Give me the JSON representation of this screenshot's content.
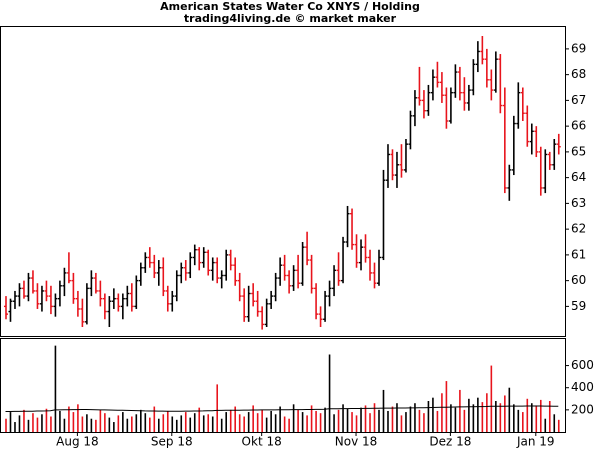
{
  "chart_data": {
    "type": "ohlc",
    "title": "American States Water Co XNYS / Holding",
    "subtitle": "trading4living.de © market maker",
    "up_color": "#000000",
    "down_color": "#e8141c",
    "avg_color": "#000000",
    "xlim": [
      -1,
      124.5
    ],
    "xticks": [
      {
        "value": 16,
        "label": "Aug 18"
      },
      {
        "value": 37,
        "label": "Sep 18"
      },
      {
        "value": 57,
        "label": "Okt 18"
      },
      {
        "value": 78,
        "label": "Nov 18"
      },
      {
        "value": 99,
        "label": "Dez 18"
      },
      {
        "value": 118,
        "label": "Jan 19"
      }
    ],
    "ylim": [
      57.85,
      69.85
    ],
    "yticks": [
      59,
      60,
      61,
      62,
      63,
      64,
      65,
      66,
      67,
      68,
      69
    ],
    "y2lim": [
      0,
      840
    ],
    "y2ticks": [
      200,
      400,
      600
    ],
    "bars": [
      [
        59.0,
        59.4,
        58.5,
        58.7
      ],
      [
        58.8,
        59.3,
        58.4,
        59.2
      ],
      [
        59.2,
        59.6,
        58.9,
        59.4
      ],
      [
        59.4,
        59.9,
        59.0,
        59.7
      ],
      [
        59.7,
        60.0,
        59.3,
        59.4
      ],
      [
        59.4,
        60.3,
        59.2,
        60.1
      ],
      [
        60.1,
        60.4,
        59.5,
        59.6
      ],
      [
        59.6,
        59.9,
        58.9,
        59.1
      ],
      [
        59.1,
        59.8,
        58.8,
        59.6
      ],
      [
        59.6,
        60.0,
        59.2,
        59.4
      ],
      [
        59.4,
        59.8,
        58.7,
        59.0
      ],
      [
        59.0,
        59.5,
        58.6,
        59.3
      ],
      [
        59.3,
        60.0,
        59.0,
        59.8
      ],
      [
        59.8,
        60.5,
        59.4,
        60.3
      ],
      [
        60.3,
        61.1,
        59.9,
        60.0
      ],
      [
        60.0,
        60.3,
        59.1,
        59.3
      ],
      [
        59.3,
        59.6,
        58.6,
        58.9
      ],
      [
        58.9,
        59.3,
        58.2,
        58.4
      ],
      [
        58.4,
        59.9,
        58.3,
        59.7
      ],
      [
        59.7,
        60.4,
        59.4,
        60.1
      ],
      [
        60.1,
        60.3,
        59.5,
        59.6
      ],
      [
        59.6,
        60.0,
        59.0,
        59.3
      ],
      [
        59.3,
        59.5,
        58.5,
        58.8
      ],
      [
        58.8,
        59.4,
        58.2,
        59.2
      ],
      [
        59.2,
        59.7,
        58.9,
        59.3
      ],
      [
        59.3,
        59.5,
        58.8,
        59.0
      ],
      [
        59.0,
        59.5,
        58.5,
        59.3
      ],
      [
        59.3,
        59.8,
        59.0,
        59.5
      ],
      [
        59.5,
        59.9,
        58.8,
        59.0
      ],
      [
        59.0,
        60.2,
        58.9,
        60.0
      ],
      [
        60.0,
        60.7,
        59.8,
        60.5
      ],
      [
        60.5,
        61.1,
        60.3,
        60.9
      ],
      [
        60.9,
        61.3,
        60.5,
        60.7
      ],
      [
        60.7,
        61.0,
        60.1,
        60.3
      ],
      [
        60.3,
        60.8,
        59.8,
        60.5
      ],
      [
        60.5,
        60.9,
        59.4,
        59.6
      ],
      [
        59.6,
        59.8,
        58.8,
        59.1
      ],
      [
        59.1,
        59.6,
        58.8,
        59.4
      ],
      [
        59.4,
        60.4,
        59.2,
        60.2
      ],
      [
        60.2,
        60.7,
        59.9,
        60.5
      ],
      [
        60.5,
        60.8,
        60.0,
        60.3
      ],
      [
        60.3,
        61.1,
        60.1,
        60.9
      ],
      [
        60.9,
        61.4,
        60.6,
        61.2
      ],
      [
        61.2,
        61.3,
        60.4,
        60.7
      ],
      [
        60.7,
        61.3,
        60.5,
        61.1
      ],
      [
        61.1,
        61.2,
        60.2,
        60.4
      ],
      [
        60.4,
        60.9,
        60.0,
        60.7
      ],
      [
        60.7,
        60.9,
        59.9,
        60.1
      ],
      [
        60.1,
        60.4,
        59.7,
        60.2
      ],
      [
        60.2,
        61.2,
        60.0,
        61.0
      ],
      [
        61.0,
        61.2,
        60.4,
        60.6
      ],
      [
        60.6,
        60.9,
        59.8,
        60.0
      ],
      [
        60.0,
        60.3,
        59.2,
        59.4
      ],
      [
        59.4,
        59.7,
        58.4,
        58.6
      ],
      [
        58.6,
        59.8,
        58.4,
        59.5
      ],
      [
        59.5,
        59.9,
        59.0,
        59.2
      ],
      [
        59.2,
        59.6,
        58.6,
        58.8
      ],
      [
        58.8,
        59.0,
        58.1,
        58.3
      ],
      [
        58.3,
        59.3,
        58.2,
        59.1
      ],
      [
        59.1,
        59.6,
        58.9,
        59.4
      ],
      [
        59.4,
        60.3,
        59.2,
        60.1
      ],
      [
        60.1,
        60.9,
        59.8,
        60.6
      ],
      [
        60.6,
        61.0,
        60.0,
        60.2
      ],
      [
        60.2,
        60.4,
        59.5,
        59.8
      ],
      [
        59.8,
        60.6,
        59.6,
        60.4
      ],
      [
        60.4,
        61.0,
        59.7,
        59.9
      ],
      [
        59.9,
        61.5,
        59.8,
        61.3
      ],
      [
        61.3,
        61.9,
        60.6,
        60.8
      ],
      [
        60.8,
        61.0,
        59.5,
        59.7
      ],
      [
        59.7,
        59.9,
        58.5,
        58.7
      ],
      [
        58.7,
        59.0,
        58.2,
        58.5
      ],
      [
        58.5,
        59.6,
        58.4,
        59.4
      ],
      [
        59.4,
        60.0,
        59.0,
        59.7
      ],
      [
        59.7,
        60.6,
        59.4,
        60.4
      ],
      [
        60.4,
        61.1,
        59.8,
        60.0
      ],
      [
        60.0,
        61.7,
        59.9,
        61.5
      ],
      [
        61.5,
        62.9,
        61.3,
        62.6
      ],
      [
        62.6,
        62.8,
        61.2,
        61.4
      ],
      [
        61.4,
        61.8,
        60.5,
        60.7
      ],
      [
        60.7,
        61.6,
        60.4,
        61.3
      ],
      [
        61.3,
        61.8,
        60.7,
        60.9
      ],
      [
        60.9,
        61.2,
        60.0,
        60.3
      ],
      [
        60.3,
        60.7,
        59.7,
        59.9
      ],
      [
        59.9,
        61.2,
        59.8,
        60.9
      ],
      [
        60.9,
        64.3,
        60.8,
        63.9
      ],
      [
        63.9,
        65.3,
        63.6,
        64.9
      ],
      [
        64.9,
        65.1,
        63.9,
        64.1
      ],
      [
        64.1,
        65.0,
        63.6,
        64.5
      ],
      [
        64.5,
        65.3,
        64.0,
        64.3
      ],
      [
        64.3,
        65.5,
        64.2,
        65.3
      ],
      [
        65.3,
        66.6,
        65.1,
        66.4
      ],
      [
        66.4,
        67.4,
        66.0,
        67.1
      ],
      [
        67.1,
        68.3,
        66.8,
        67.0
      ],
      [
        67.0,
        67.4,
        66.3,
        66.6
      ],
      [
        66.6,
        67.6,
        66.4,
        67.3
      ],
      [
        67.3,
        68.2,
        67.0,
        67.9
      ],
      [
        67.9,
        68.5,
        67.5,
        67.7
      ],
      [
        67.7,
        68.1,
        66.9,
        67.2
      ],
      [
        67.2,
        67.5,
        65.9,
        66.2
      ],
      [
        66.2,
        67.5,
        66.1,
        67.3
      ],
      [
        67.3,
        68.4,
        67.1,
        68.1
      ],
      [
        68.1,
        68.3,
        67.0,
        67.3
      ],
      [
        67.3,
        67.9,
        66.6,
        66.9
      ],
      [
        66.9,
        67.6,
        66.6,
        67.4
      ],
      [
        67.4,
        68.6,
        67.2,
        68.4
      ],
      [
        68.4,
        69.3,
        68.1,
        68.9
      ],
      [
        68.9,
        69.5,
        68.4,
        68.6
      ],
      [
        68.6,
        69.0,
        67.5,
        67.8
      ],
      [
        67.8,
        68.2,
        67.0,
        67.4
      ],
      [
        67.4,
        68.9,
        67.3,
        68.6
      ],
      [
        68.6,
        68.8,
        66.5,
        66.8
      ],
      [
        66.8,
        67.5,
        63.4,
        63.6
      ],
      [
        63.6,
        64.5,
        63.1,
        64.3
      ],
      [
        64.3,
        66.4,
        64.1,
        66.1
      ],
      [
        66.1,
        67.7,
        65.9,
        67.3
      ],
      [
        67.3,
        67.5,
        66.2,
        66.5
      ],
      [
        66.5,
        66.8,
        65.2,
        65.4
      ],
      [
        65.4,
        66.1,
        64.9,
        65.8
      ],
      [
        65.8,
        66.0,
        64.8,
        65.0
      ],
      [
        65.0,
        65.2,
        63.3,
        63.6
      ],
      [
        63.6,
        65.1,
        63.4,
        64.9
      ],
      [
        64.9,
        65.0,
        64.3,
        64.5
      ],
      [
        64.5,
        65.5,
        64.3,
        65.3
      ],
      [
        65.3,
        65.7,
        64.9,
        65.2
      ]
    ],
    "volume": [
      120,
      180,
      90,
      150,
      200,
      110,
      170,
      130,
      160,
      210,
      140,
      780,
      190,
      120,
      230,
      180,
      250,
      140,
      160,
      120,
      110,
      200,
      170,
      130,
      90,
      150,
      180,
      120,
      140,
      160,
      200,
      170,
      130,
      230,
      120,
      160,
      190,
      140,
      110,
      150,
      180,
      130,
      170,
      220,
      150,
      160,
      140,
      430,
      120,
      180,
      200,
      230,
      160,
      140,
      180,
      240,
      170,
      200,
      130,
      190,
      160,
      230,
      140,
      120,
      250,
      200,
      180,
      150,
      240,
      190,
      170,
      220,
      700,
      160,
      200,
      250,
      210,
      180,
      150,
      220,
      240,
      170,
      260,
      200,
      380,
      190,
      230,
      260,
      150,
      180,
      230,
      260,
      200,
      170,
      280,
      310,
      190,
      350,
      460,
      250,
      220,
      380,
      200,
      300,
      250,
      310,
      270,
      350,
      600,
      280,
      260,
      330,
      400,
      250,
      200,
      180,
      300,
      260,
      240,
      290,
      120,
      280,
      160,
      110
    ],
    "volume_avg": [
      185,
      185,
      186,
      186,
      187,
      188,
      188,
      190,
      190,
      191,
      192,
      200,
      200,
      201,
      201,
      202,
      202,
      203,
      203,
      202,
      201,
      200,
      200,
      199,
      198,
      197,
      196,
      195,
      194,
      193,
      192,
      191,
      190,
      190,
      189,
      189,
      188,
      188,
      188,
      188,
      189,
      189,
      190,
      190,
      191,
      192,
      192,
      195,
      195,
      196,
      196,
      197,
      197,
      198,
      198,
      199,
      199,
      200,
      200,
      200,
      200,
      201,
      201,
      201,
      202,
      202,
      202,
      203,
      203,
      204,
      204,
      205,
      210,
      210,
      210,
      211,
      211,
      212,
      212,
      212,
      213,
      213,
      214,
      214,
      216,
      216,
      216,
      217,
      217,
      217,
      218,
      218,
      219,
      219,
      220,
      221,
      222,
      223,
      224,
      225,
      226,
      227,
      227,
      228,
      228,
      229,
      229,
      230,
      232,
      232,
      232,
      233,
      234,
      234,
      234,
      234,
      235,
      235,
      235,
      235,
      234,
      234,
      233,
      233
    ]
  }
}
